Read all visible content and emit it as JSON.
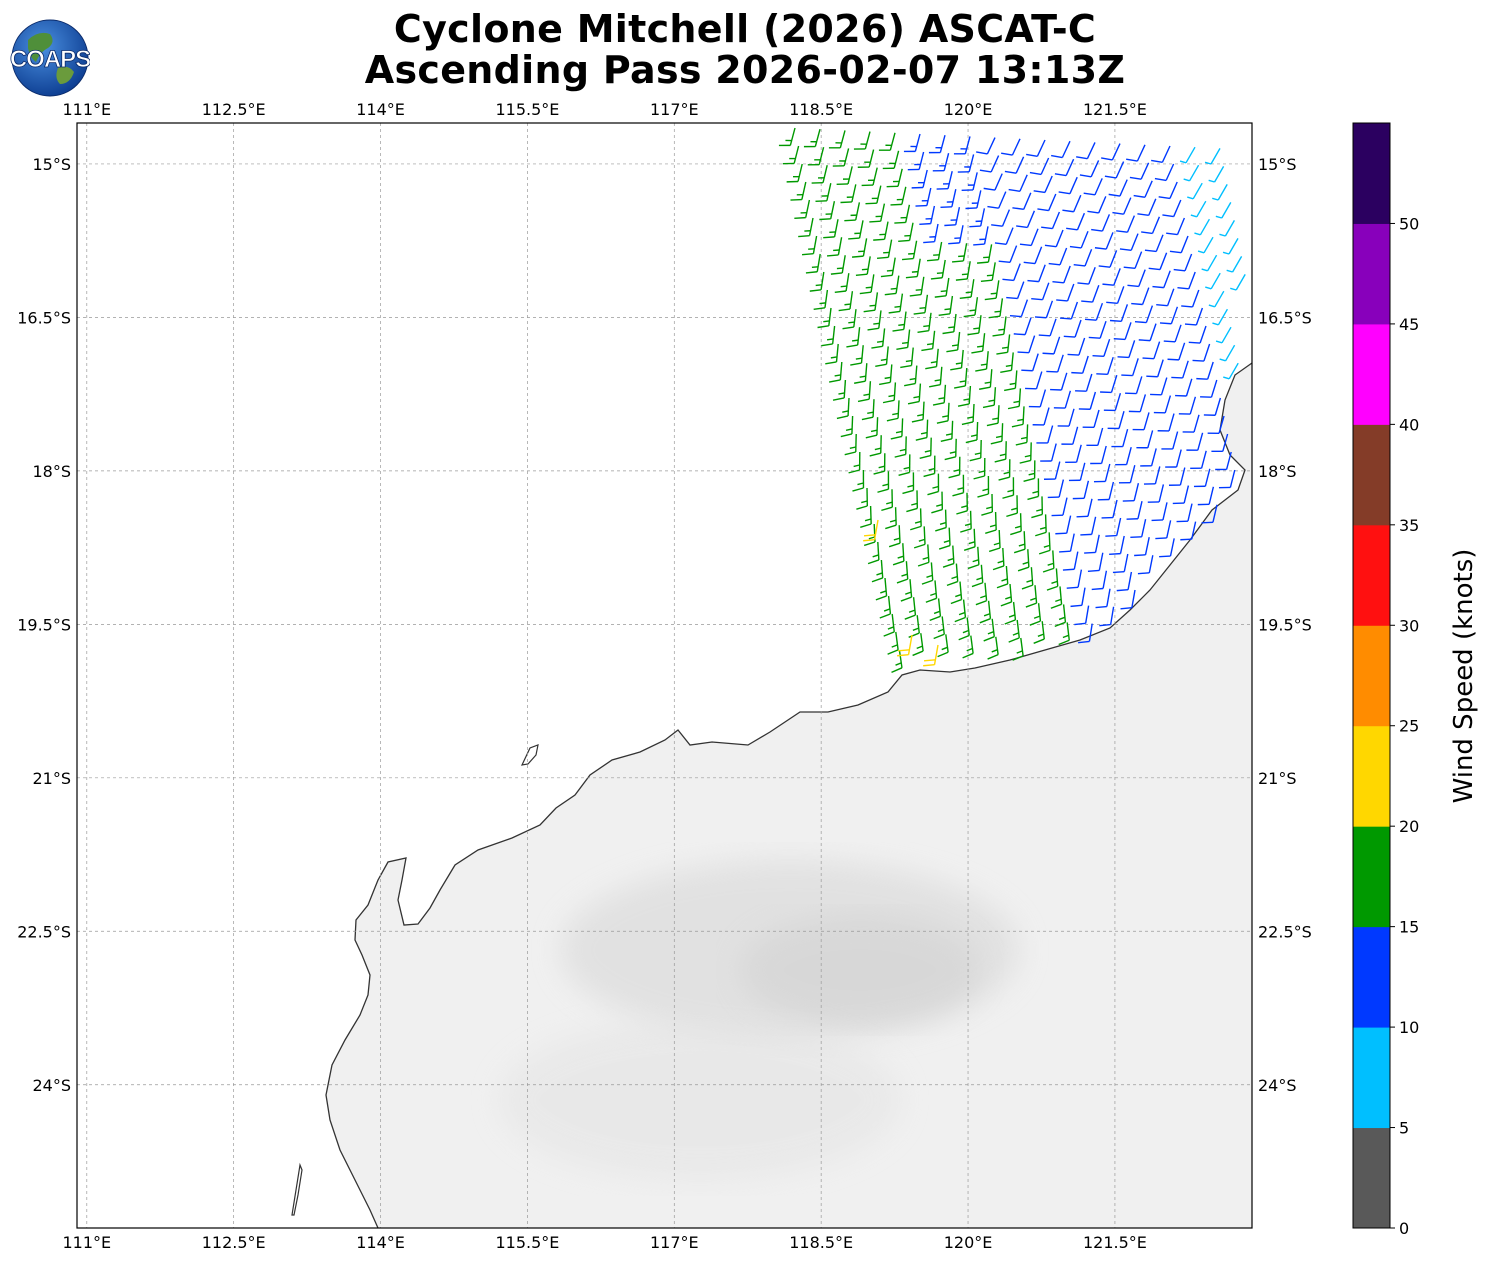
{
  "title": {
    "line1": "Cyclone Mitchell (2026) ASCAT-C",
    "line2": "Ascending Pass 2026-02-07 13:13Z"
  },
  "logo": {
    "text": "COAPS",
    "icon": "globe-icon"
  },
  "map": {
    "lon_range": [
      110.9,
      122.9
    ],
    "lat_range": [
      -14.6,
      -25.4
    ],
    "lon_ticks": [
      "111°E",
      "112.5°E",
      "114°E",
      "115.5°E",
      "117°E",
      "118.5°E",
      "120°E",
      "121.5°E"
    ],
    "lat_ticks": [
      "15°S",
      "16.5°S",
      "18°S",
      "19.5°S",
      "21°S",
      "22.5°S",
      "24°S"
    ],
    "grid": true,
    "land_color": "#f0f0f0",
    "coastline_color": "#333333"
  },
  "colorbar": {
    "label": "Wind Speed (knots)",
    "ticks": [
      "0",
      "5",
      "10",
      "15",
      "20",
      "25",
      "30",
      "35",
      "40",
      "45",
      "50"
    ],
    "colors": [
      "#595959",
      "#00bfff",
      "#0039ff",
      "#009900",
      "#ffd700",
      "#ff8c00",
      "#ff1010",
      "#843c28",
      "#ff00ff",
      "#8800bb",
      "#2b0060"
    ]
  },
  "chart_data": {
    "type": "scatter",
    "title": "Cyclone Mitchell (2026) ASCAT-C Ascending Pass 2026-02-07 13:13Z",
    "description_of_marks": "wind barbs colored by wind speed bin",
    "swath_lon_range": [
      118.2,
      122.9
    ],
    "swath_lat_range": [
      -14.6,
      -20.0
    ],
    "speed_bins_knots": [
      [
        0,
        5
      ],
      [
        5,
        10
      ],
      [
        10,
        15
      ],
      [
        15,
        20
      ],
      [
        20,
        25
      ],
      [
        25,
        30
      ],
      [
        30,
        35
      ],
      [
        35,
        40
      ],
      [
        40,
        45
      ],
      [
        45,
        50
      ],
      [
        50,
        55
      ]
    ],
    "dominant_speeds": {
      "west_swath": "15-20 knots",
      "east_swath": "10-15 knots",
      "southwest_edge": "20-25 knots",
      "far_northeast": "5-10 knots"
    }
  }
}
